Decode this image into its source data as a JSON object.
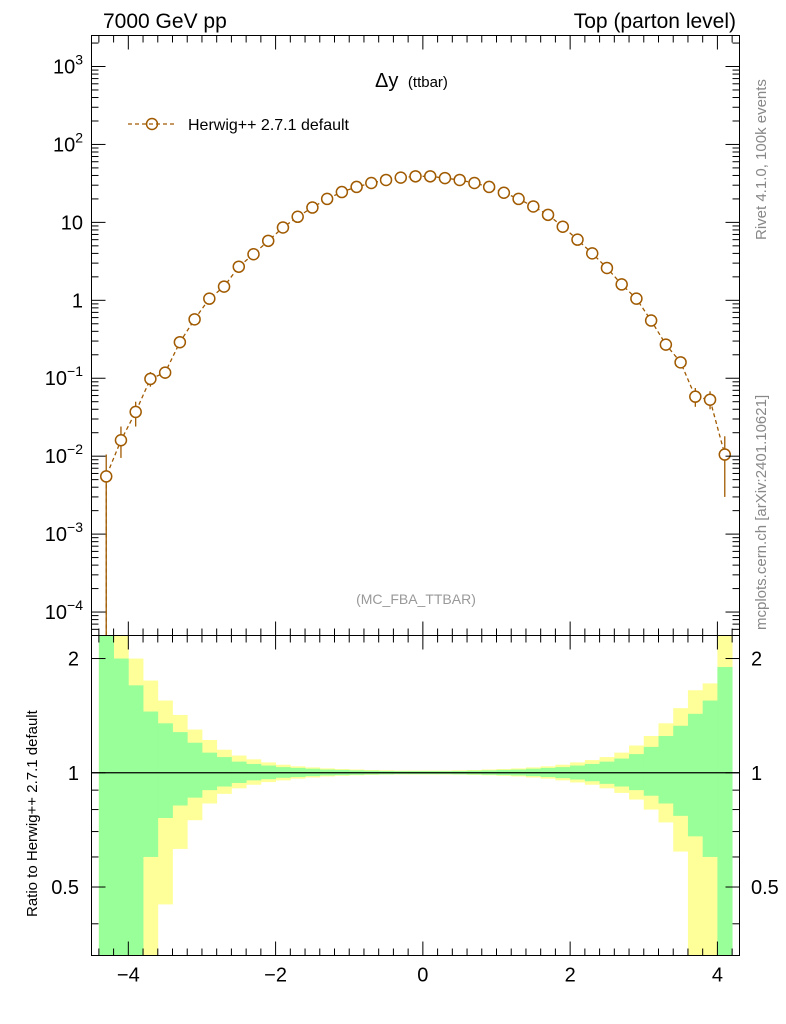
{
  "header": {
    "left": "7000 GeV pp",
    "right": "Top (parton level)"
  },
  "side": {
    "rivet": "Rivet 4.1.0,  100k events",
    "mcplots": "mcplots.cern.ch [arXiv:2401.10621]"
  },
  "colors": {
    "series": "#a05a00",
    "band_inner": "#99ff99",
    "band_outer": "#ffff99",
    "watermark": "#999999"
  },
  "chart_data": {
    "type": "scatter",
    "title": "Δy",
    "title_suffix": "(ttbar)",
    "watermark": "(MC_FBA_TTBAR)",
    "xlabel": "",
    "ylabel": "",
    "ratio_ylabel": "Ratio to Herwig++ 2.7.1 default",
    "xlim": [
      -4.5,
      4.3
    ],
    "ylim": [
      5e-05,
      2500
    ],
    "ylog": true,
    "ratio_ylim": [
      0.33,
      2.3
    ],
    "legend": {
      "position": "top-left",
      "label": "Herwig++ 2.7.1 default",
      "marker": "open-circle",
      "line": "dashed"
    },
    "x_ticks": [
      "−4",
      "−2",
      "0",
      "2",
      "4"
    ],
    "x_tick_values": [
      -4,
      -2,
      0,
      2,
      4
    ],
    "y_ticks": [
      {
        "value": 1000,
        "base": "10",
        "exp": "3"
      },
      {
        "value": 100,
        "base": "10",
        "exp": "2"
      },
      {
        "value": 10,
        "base": "10",
        "exp": ""
      },
      {
        "value": 1,
        "base": "1",
        "exp": ""
      },
      {
        "value": 0.1,
        "base": "10",
        "exp": "−1"
      },
      {
        "value": 0.01,
        "base": "10",
        "exp": "−2"
      },
      {
        "value": 0.001,
        "base": "10",
        "exp": "−3"
      },
      {
        "value": 0.0001,
        "base": "10",
        "exp": "−4"
      }
    ],
    "ratio_ticks": [
      {
        "value": 2,
        "label": "2"
      },
      {
        "value": 1,
        "label": "1"
      },
      {
        "value": 0.5,
        "label": "0.5"
      }
    ],
    "series": [
      {
        "name": "Herwig++ 2.7.1 default",
        "points": [
          {
            "x": -4.3,
            "y": 0.0055,
            "lo": 3e-05,
            "hi": 0.0105
          },
          {
            "x": -4.1,
            "y": 0.016,
            "lo": 0.0095,
            "hi": 0.024
          },
          {
            "x": -3.9,
            "y": 0.037,
            "lo": 0.024,
            "hi": 0.05
          },
          {
            "x": -3.7,
            "y": 0.098,
            "lo": 0.078,
            "hi": 0.12
          },
          {
            "x": -3.5,
            "y": 0.118,
            "lo": 0.098,
            "hi": 0.14
          },
          {
            "x": -3.3,
            "y": 0.29,
            "lo": 0.26,
            "hi": 0.32
          },
          {
            "x": -3.1,
            "y": 0.57,
            "lo": 0.53,
            "hi": 0.61
          },
          {
            "x": -2.9,
            "y": 1.05,
            "lo": 1.0,
            "hi": 1.1
          },
          {
            "x": -2.7,
            "y": 1.5,
            "lo": 1.43,
            "hi": 1.57
          },
          {
            "x": -2.5,
            "y": 2.7,
            "lo": 2.6,
            "hi": 2.8
          },
          {
            "x": -2.3,
            "y": 3.9,
            "lo": 3.8,
            "hi": 4.0
          },
          {
            "x": -2.1,
            "y": 5.8,
            "lo": 5.7,
            "hi": 5.9
          },
          {
            "x": -1.9,
            "y": 8.6,
            "lo": 8.5,
            "hi": 8.7
          },
          {
            "x": -1.7,
            "y": 11.8,
            "lo": 11.7,
            "hi": 11.9
          },
          {
            "x": -1.5,
            "y": 15.5,
            "lo": 15.4,
            "hi": 15.6
          },
          {
            "x": -1.3,
            "y": 20,
            "lo": 19.9,
            "hi": 20.1
          },
          {
            "x": -1.1,
            "y": 24.5,
            "lo": 24.4,
            "hi": 24.6
          },
          {
            "x": -0.9,
            "y": 28.5,
            "lo": 28.4,
            "hi": 28.6
          },
          {
            "x": -0.7,
            "y": 32,
            "lo": 31.9,
            "hi": 32.1
          },
          {
            "x": -0.5,
            "y": 35,
            "lo": 34.9,
            "hi": 35.1
          },
          {
            "x": -0.3,
            "y": 37.5,
            "lo": 37.4,
            "hi": 37.6
          },
          {
            "x": -0.1,
            "y": 39,
            "lo": 38.9,
            "hi": 39.1
          },
          {
            "x": 0.1,
            "y": 39,
            "lo": 38.9,
            "hi": 39.1
          },
          {
            "x": 0.3,
            "y": 37,
            "lo": 36.9,
            "hi": 37.1
          },
          {
            "x": 0.5,
            "y": 35,
            "lo": 34.9,
            "hi": 35.1
          },
          {
            "x": 0.7,
            "y": 32,
            "lo": 31.9,
            "hi": 32.1
          },
          {
            "x": 0.9,
            "y": 28.5,
            "lo": 28.4,
            "hi": 28.6
          },
          {
            "x": 1.1,
            "y": 24,
            "lo": 23.9,
            "hi": 24.1
          },
          {
            "x": 1.3,
            "y": 20,
            "lo": 19.9,
            "hi": 20.1
          },
          {
            "x": 1.5,
            "y": 16,
            "lo": 15.9,
            "hi": 16.1
          },
          {
            "x": 1.7,
            "y": 12.5,
            "lo": 12.4,
            "hi": 12.6
          },
          {
            "x": 1.9,
            "y": 8.8,
            "lo": 8.7,
            "hi": 8.9
          },
          {
            "x": 2.1,
            "y": 6,
            "lo": 5.9,
            "hi": 6.1
          },
          {
            "x": 2.3,
            "y": 4,
            "lo": 3.9,
            "hi": 4.1
          },
          {
            "x": 2.5,
            "y": 2.6,
            "lo": 2.5,
            "hi": 2.7
          },
          {
            "x": 2.7,
            "y": 1.6,
            "lo": 1.54,
            "hi": 1.66
          },
          {
            "x": 2.9,
            "y": 1.05,
            "lo": 1.0,
            "hi": 1.1
          },
          {
            "x": 3.1,
            "y": 0.55,
            "lo": 0.51,
            "hi": 0.59
          },
          {
            "x": 3.3,
            "y": 0.27,
            "lo": 0.24,
            "hi": 0.3
          },
          {
            "x": 3.5,
            "y": 0.16,
            "lo": 0.135,
            "hi": 0.185
          },
          {
            "x": 3.7,
            "y": 0.058,
            "lo": 0.043,
            "hi": 0.075
          },
          {
            "x": 3.9,
            "y": 0.053,
            "lo": 0.04,
            "hi": 0.068
          },
          {
            "x": 4.1,
            "y": 0.0105,
            "lo": 0.003,
            "hi": 0.018
          }
        ]
      }
    ],
    "ratio_bands": {
      "edges": [
        -4.4,
        -4.2,
        -4.0,
        -3.8,
        -3.6,
        -3.4,
        -3.2,
        -3.0,
        -2.8,
        -2.6,
        -2.4,
        -2.2,
        -2.0,
        -1.8,
        -1.6,
        -1.4,
        -1.2,
        -1.0,
        -0.8,
        -0.6,
        -0.4,
        -0.2,
        0.0,
        0.2,
        0.4,
        0.6,
        0.8,
        1.0,
        1.2,
        1.4,
        1.6,
        1.8,
        2.0,
        2.2,
        2.4,
        2.6,
        2.8,
        3.0,
        3.2,
        3.4,
        3.6,
        3.8,
        4.0,
        4.2
      ],
      "inner_hi": [
        2.3,
        2.0,
        1.7,
        1.45,
        1.35,
        1.28,
        1.2,
        1.13,
        1.1,
        1.07,
        1.055,
        1.045,
        1.035,
        1.03,
        1.025,
        1.02,
        1.018,
        1.015,
        1.013,
        1.011,
        1.01,
        1.01,
        1.01,
        1.01,
        1.011,
        1.013,
        1.015,
        1.018,
        1.02,
        1.025,
        1.03,
        1.035,
        1.045,
        1.055,
        1.07,
        1.09,
        1.12,
        1.17,
        1.25,
        1.33,
        1.43,
        1.55,
        1.9
      ],
      "inner_lo": [
        0.33,
        0.33,
        0.33,
        0.6,
        0.76,
        0.82,
        0.86,
        0.9,
        0.92,
        0.94,
        0.955,
        0.962,
        0.97,
        0.975,
        0.98,
        0.984,
        0.986,
        0.988,
        0.99,
        0.991,
        0.992,
        0.992,
        0.992,
        0.992,
        0.991,
        0.99,
        0.988,
        0.986,
        0.984,
        0.98,
        0.975,
        0.968,
        0.96,
        0.95,
        0.935,
        0.92,
        0.9,
        0.87,
        0.83,
        0.77,
        0.68,
        0.6,
        0.33
      ],
      "outer_hi": [
        2.3,
        2.3,
        2.0,
        1.75,
        1.55,
        1.42,
        1.3,
        1.22,
        1.15,
        1.11,
        1.085,
        1.065,
        1.05,
        1.04,
        1.033,
        1.027,
        1.023,
        1.02,
        1.017,
        1.015,
        1.013,
        1.013,
        1.013,
        1.013,
        1.015,
        1.017,
        1.02,
        1.023,
        1.027,
        1.033,
        1.04,
        1.05,
        1.065,
        1.08,
        1.1,
        1.13,
        1.18,
        1.25,
        1.35,
        1.48,
        1.65,
        1.72,
        2.3
      ],
      "outer_lo": [
        0.33,
        0.33,
        0.33,
        0.33,
        0.45,
        0.63,
        0.75,
        0.83,
        0.88,
        0.91,
        0.93,
        0.945,
        0.955,
        0.965,
        0.972,
        0.978,
        0.982,
        0.985,
        0.987,
        0.989,
        0.99,
        0.99,
        0.99,
        0.99,
        0.989,
        0.987,
        0.985,
        0.982,
        0.978,
        0.972,
        0.965,
        0.955,
        0.943,
        0.93,
        0.91,
        0.885,
        0.85,
        0.8,
        0.74,
        0.62,
        0.33,
        0.33,
        0.33
      ]
    }
  }
}
